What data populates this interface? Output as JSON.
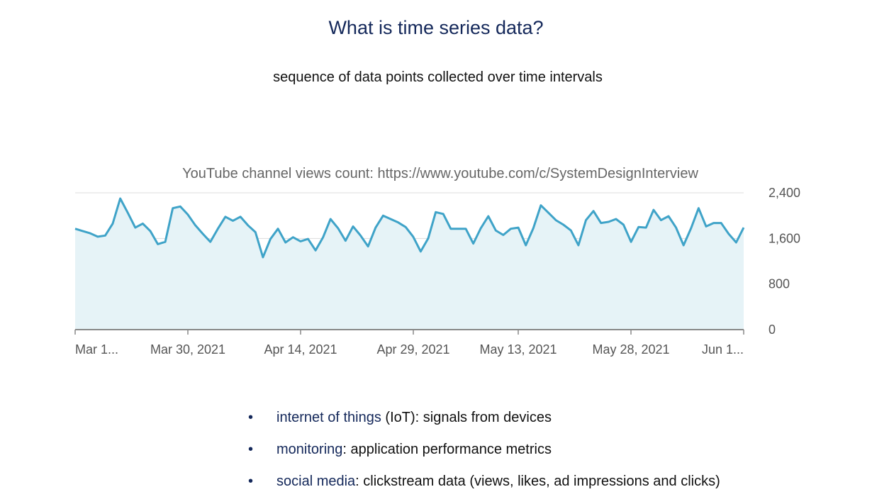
{
  "slide": {
    "title": "What is time series data?",
    "subtitle": "sequence of data points collected over time intervals"
  },
  "colors": {
    "line": "#3fa3c8",
    "fill": "#e6f3f7",
    "title": "#14285a",
    "axis_text": "#555555"
  },
  "chart_data": {
    "type": "area",
    "title": "YouTube channel views count: https://www.youtube.com/c/SystemDesignInterview",
    "xlabel": "",
    "ylabel": "",
    "x_tick_labels": [
      "Mar 1...",
      "Mar 30, 2021",
      "Apr 14, 2021",
      "Apr 29, 2021",
      "May 13, 2021",
      "May 28, 2021",
      "Jun 1..."
    ],
    "y_tick_labels": [
      "2,400",
      "1,600",
      "800",
      "0"
    ],
    "y_ticks": [
      2400,
      1600,
      800,
      0
    ],
    "ylim": [
      0,
      2400
    ],
    "y_axis_side": "right",
    "grid": true,
    "legend": "none",
    "series": [
      {
        "values": [
          1770,
          1730,
          1690,
          1630,
          1650,
          1860,
          2300,
          2050,
          1790,
          1860,
          1730,
          1500,
          1540,
          2130,
          2160,
          2020,
          1830,
          1680,
          1540,
          1770,
          1980,
          1910,
          1980,
          1830,
          1710,
          1270,
          1590,
          1770,
          1530,
          1620,
          1550,
          1590,
          1390,
          1620,
          1940,
          1780,
          1560,
          1810,
          1650,
          1460,
          1790,
          2000,
          1940,
          1880,
          1800,
          1630,
          1370,
          1600,
          2060,
          2030,
          1770,
          1770,
          1770,
          1510,
          1780,
          1990,
          1740,
          1660,
          1770,
          1790,
          1480,
          1780,
          2180,
          2050,
          1920,
          1840,
          1740,
          1480,
          1920,
          2080,
          1870,
          1890,
          1940,
          1840,
          1540,
          1800,
          1790,
          2100,
          1920,
          1990,
          1790,
          1480,
          1780,
          2130,
          1810,
          1870,
          1870,
          1680,
          1530,
          1790
        ]
      }
    ]
  },
  "bullets": [
    {
      "term": "internet of things",
      "text": " (IoT): signals from devices"
    },
    {
      "term": "monitoring",
      "text": ": application performance metrics"
    },
    {
      "term": "social media",
      "text": ": clickstream data (views, likes, ad impressions and clicks)"
    }
  ]
}
